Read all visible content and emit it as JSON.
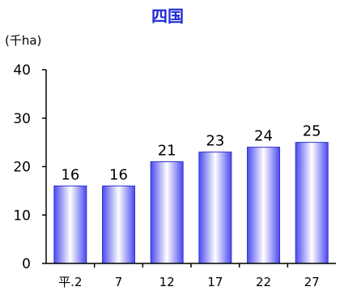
{
  "chart_data": {
    "type": "bar",
    "title": "四国",
    "unit": "(千ha)",
    "categories": [
      "平.2",
      "7",
      "12",
      "17",
      "22",
      "27"
    ],
    "values": [
      16,
      16,
      21,
      23,
      24,
      25
    ],
    "value_labels": [
      "16",
      "16",
      "21",
      "23",
      "24",
      "25"
    ],
    "ylim": [
      0,
      40
    ],
    "yticks": [
      0,
      10,
      20,
      30,
      40
    ],
    "grid": false,
    "legend": "none",
    "colors": {
      "bar_edge": "#3333cc",
      "bar_light": "#ffffff",
      "bar_dark": "#4a4af0",
      "title": "#1f2bd9",
      "axis": "#000000"
    }
  }
}
